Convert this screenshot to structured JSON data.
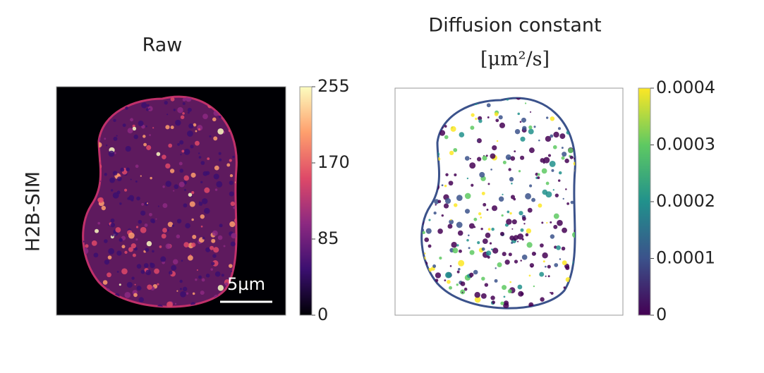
{
  "row_label": "H2B-SIM",
  "chart_data": [
    {
      "type": "image",
      "title": "Raw",
      "colormap": "magma",
      "clim": [
        0,
        255
      ],
      "cticks": [
        0,
        85,
        170,
        255
      ],
      "scale_bar": "5µm"
    },
    {
      "type": "image",
      "title": "Diffusion constant",
      "subtitle": "[μm²/s]",
      "colormap": "viridis",
      "clim": [
        0,
        0.0004
      ],
      "cticks": [
        0,
        0.0001,
        0.0002,
        0.0003,
        0.0004
      ]
    }
  ]
}
